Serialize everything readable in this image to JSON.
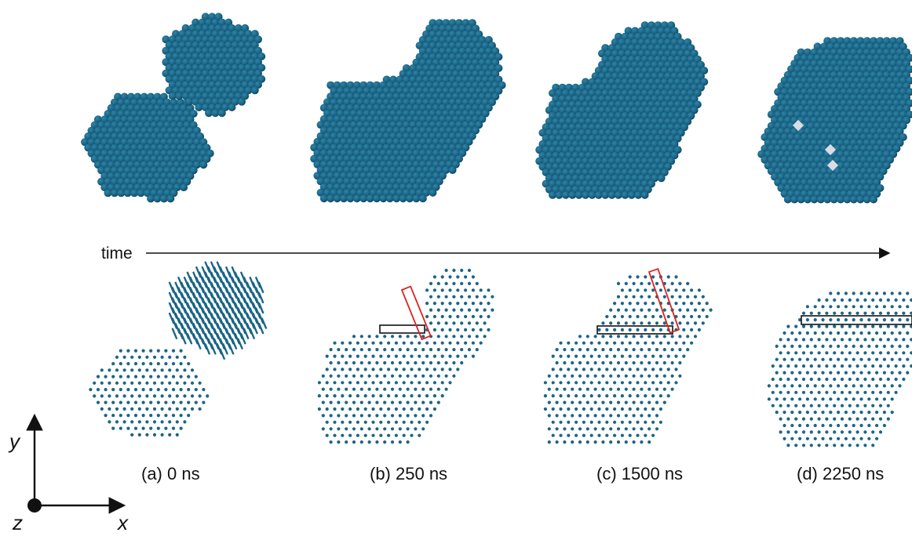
{
  "time_label": "time",
  "panels": [
    {
      "label": "(a) 0 ns"
    },
    {
      "label": "(b) 250 ns"
    },
    {
      "label": "(c) 1500 ns"
    },
    {
      "label": "(d) 2250 ns"
    }
  ],
  "axes": {
    "x": "x",
    "y": "y",
    "z": "z"
  },
  "colors": {
    "atom": "#1b6585",
    "atom_highlight": "#2f86aa",
    "atom_shadow": "#0d3f56",
    "defect": "#d9dce6",
    "red_box": "#dd2222",
    "black_box": "#111111",
    "arrow": "#111111"
  }
}
